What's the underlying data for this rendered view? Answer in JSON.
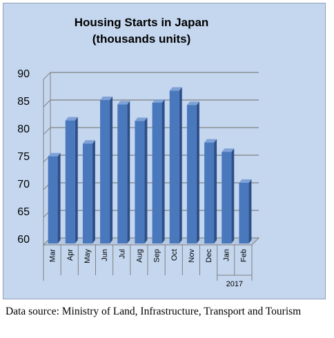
{
  "chart_data": {
    "type": "bar",
    "title": "Housing Starts in Japan",
    "subtitle": "(thousands units)",
    "categories": [
      "Mar",
      "Apr",
      "May",
      "Jun",
      "Jul",
      "Aug",
      "Sep",
      "Oct",
      "Nov",
      "Dec",
      "Jan",
      "Feb"
    ],
    "values": [
      75.8,
      82.3,
      78.1,
      86.0,
      85.2,
      82.2,
      85.5,
      87.7,
      85.1,
      78.3,
      76.6,
      71.0
    ],
    "category_groups": [
      {
        "label": "2017",
        "categories": [
          "Jan",
          "Feb"
        ]
      }
    ],
    "yticks": [
      60,
      65,
      70,
      75,
      80,
      85,
      90
    ],
    "ylim": [
      60,
      90
    ],
    "xlabel": "",
    "ylabel": "",
    "grid": true,
    "colors": {
      "bar_front": "#4a78bd",
      "bar_side": "#2d4f88",
      "bar_top": "#7fa2d6",
      "background": "#c5d7ef"
    }
  },
  "source_note": "Data source: Ministry of Land, Infrastructure, Transport and Tourism"
}
